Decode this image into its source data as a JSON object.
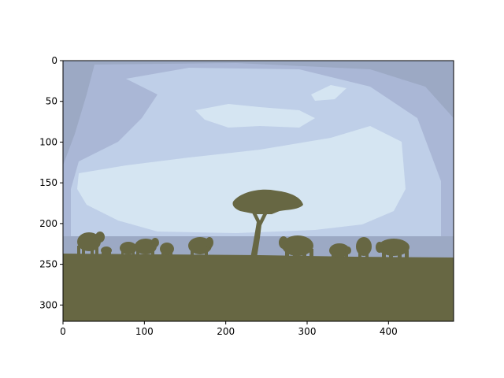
{
  "figure": {
    "axes": {
      "x": {
        "range": [
          0,
          480
        ],
        "ticks": [
          {
            "value": 0,
            "label": "0"
          },
          {
            "value": 100,
            "label": "100"
          },
          {
            "value": 200,
            "label": "200"
          },
          {
            "value": 300,
            "label": "300"
          },
          {
            "value": 400,
            "label": "400"
          }
        ]
      },
      "y": {
        "range": [
          0,
          320
        ],
        "inverted": true,
        "ticks": [
          {
            "value": 0,
            "label": "0"
          },
          {
            "value": 50,
            "label": "50"
          },
          {
            "value": 100,
            "label": "100"
          },
          {
            "value": 150,
            "label": "150"
          },
          {
            "value": 200,
            "label": "200"
          },
          {
            "value": 250,
            "label": "250"
          },
          {
            "value": 300,
            "label": "300"
          }
        ]
      }
    },
    "image": {
      "subject": "savanna-sunset-elephant-silhouettes",
      "colors": {
        "sky_outer": "#9ca9c4",
        "sky_mid": "#aab7d6",
        "sky_light": "#bfcfe8",
        "sky_glow": "#d5e5f2",
        "silhouette": "#676743"
      }
    }
  }
}
